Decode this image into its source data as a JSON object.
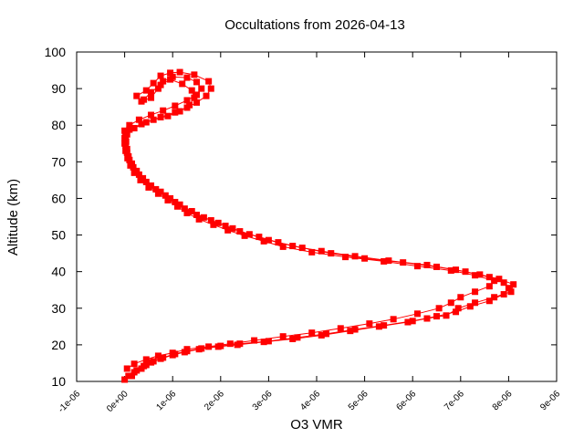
{
  "chart_data": {
    "type": "scatter",
    "title": "Occultations from 2026-04-13",
    "xlabel": "O3 VMR",
    "ylabel": "Altitude (km)",
    "xlim": [
      -1e-06,
      9e-06
    ],
    "ylim": [
      10,
      100
    ],
    "x_ticks": [
      "-1e-06",
      "0e+00",
      "1e-06",
      "2e-06",
      "3e-06",
      "4e-06",
      "5e-06",
      "6e-06",
      "7e-06",
      "8e-06",
      "9e-06"
    ],
    "x_tick_values": [
      -1e-06,
      0,
      1e-06,
      2e-06,
      3e-06,
      4e-06,
      5e-06,
      6e-06,
      7e-06,
      8e-06,
      9e-06
    ],
    "y_ticks": [
      "10",
      "20",
      "30",
      "40",
      "50",
      "60",
      "70",
      "80",
      "90",
      "100"
    ],
    "y_tick_values": [
      10,
      20,
      30,
      40,
      50,
      60,
      70,
      80,
      90,
      100
    ],
    "grid": false,
    "marker": "square",
    "color": "#ff0000",
    "series": [
      {
        "points": [
          [
            0.0,
            10.5
          ],
          [
            8e-08,
            11.5
          ],
          [
            2e-07,
            12.5
          ],
          [
            3.5e-07,
            13.5
          ],
          [
            4.5e-07,
            14.5
          ],
          [
            6e-07,
            15.5
          ],
          [
            8e-07,
            16.5
          ],
          [
            1.05e-06,
            17.5
          ],
          [
            1.3e-06,
            18.3
          ],
          [
            1.6e-06,
            19.0
          ],
          [
            2e-06,
            19.7
          ],
          [
            2.4e-06,
            20.3
          ],
          [
            3e-06,
            21.0
          ],
          [
            3.6e-06,
            22.0
          ],
          [
            4.2e-06,
            23.0
          ],
          [
            4.8e-06,
            24.2
          ],
          [
            5.4e-06,
            25.3
          ],
          [
            6e-06,
            26.5
          ],
          [
            6.5e-06,
            27.8
          ],
          [
            6.9e-06,
            29.0
          ],
          [
            7.2e-06,
            30.5
          ],
          [
            7.6e-06,
            32.0
          ],
          [
            7.9e-06,
            33.8
          ],
          [
            8e-06,
            35.5
          ],
          [
            7.9e-06,
            37.0
          ],
          [
            7.6e-06,
            38.5
          ],
          [
            7.1e-06,
            40.0
          ],
          [
            6.5e-06,
            41.3
          ],
          [
            5.8e-06,
            42.5
          ],
          [
            5e-06,
            43.6
          ],
          [
            4.3e-06,
            45.0
          ],
          [
            3.7e-06,
            46.5
          ],
          [
            3.2e-06,
            48.0
          ],
          [
            2.8e-06,
            49.5
          ],
          [
            2.4e-06,
            51.0
          ],
          [
            2.1e-06,
            52.5
          ],
          [
            1.8e-06,
            54.0
          ],
          [
            1.5e-06,
            55.5
          ],
          [
            1.25e-06,
            57.2
          ],
          [
            1.05e-06,
            59.0
          ],
          [
            8.5e-07,
            60.8
          ],
          [
            6.5e-07,
            62.5
          ],
          [
            4.5e-07,
            64.5
          ],
          [
            3e-07,
            66.5
          ],
          [
            1.8e-07,
            68.5
          ],
          [
            1e-07,
            70.5
          ],
          [
            5e-08,
            72.5
          ],
          [
            2e-08,
            74.5
          ],
          [
            0.0,
            76.5
          ],
          [
            0.0,
            78.5
          ],
          [
            1e-07,
            80.0
          ],
          [
            3e-07,
            81.5
          ],
          [
            5.5e-07,
            82.8
          ],
          [
            8e-07,
            84.0
          ],
          [
            1.05e-06,
            85.3
          ],
          [
            1.3e-06,
            86.8
          ],
          [
            1.5e-06,
            88.3
          ],
          [
            1.6e-06,
            90.0
          ],
          [
            1.5e-06,
            91.8
          ],
          [
            1.3e-06,
            93.0
          ],
          [
            1e-06,
            93.2
          ],
          [
            8e-07,
            92.0
          ],
          [
            7e-07,
            90.0
          ],
          [
            5.5e-07,
            87.5
          ],
          [
            3.5e-07,
            86.5
          ]
        ]
      },
      {
        "points": [
          [
            1.5e-07,
            11.5
          ],
          [
            2.5e-07,
            13.0
          ],
          [
            4e-07,
            14.2
          ],
          [
            5.5e-07,
            15.2
          ],
          [
            7.5e-07,
            16.2
          ],
          [
            1e-06,
            17.2
          ],
          [
            1.25e-06,
            18.0
          ],
          [
            1.55e-06,
            18.8
          ],
          [
            1.95e-06,
            19.5
          ],
          [
            2.35e-06,
            20.0
          ],
          [
            2.9e-06,
            20.8
          ],
          [
            3.5e-06,
            21.6
          ],
          [
            4.1e-06,
            22.6
          ],
          [
            4.7e-06,
            23.8
          ],
          [
            5.3e-06,
            25.0
          ],
          [
            5.9e-06,
            26.2
          ],
          [
            6.3e-06,
            27.2
          ],
          [
            6.7e-06,
            28.0
          ],
          [
            6.95e-06,
            30.0
          ],
          [
            7.3e-06,
            31.5
          ],
          [
            7.7e-06,
            33.0
          ],
          [
            8.05e-06,
            34.5
          ],
          [
            8.1e-06,
            36.5
          ],
          [
            7.8e-06,
            38.0
          ],
          [
            7.4e-06,
            39.2
          ],
          [
            6.9e-06,
            40.5
          ],
          [
            6.3e-06,
            41.8
          ],
          [
            5.5e-06,
            43.0
          ],
          [
            4.8e-06,
            44.2
          ],
          [
            4.1e-06,
            45.6
          ],
          [
            3.5e-06,
            47.0
          ],
          [
            3e-06,
            48.6
          ],
          [
            2.6e-06,
            50.2
          ],
          [
            2.25e-06,
            51.8
          ],
          [
            1.95e-06,
            53.3
          ],
          [
            1.65e-06,
            54.8
          ],
          [
            1.4e-06,
            56.5
          ],
          [
            1.15e-06,
            58.3
          ],
          [
            9.5e-07,
            60.0
          ],
          [
            7.5e-07,
            61.8
          ],
          [
            5.5e-07,
            63.5
          ],
          [
            3.8e-07,
            65.5
          ],
          [
            2.5e-07,
            67.5
          ],
          [
            1.5e-07,
            69.5
          ],
          [
            8e-08,
            71.5
          ],
          [
            5e-08,
            73.5
          ],
          [
            3e-08,
            75.5
          ],
          [
            5e-08,
            77.5
          ],
          [
            2e-07,
            79.2
          ],
          [
            4.5e-07,
            80.8
          ],
          [
            7.5e-07,
            82.2
          ],
          [
            1.05e-06,
            83.5
          ],
          [
            1.3e-06,
            84.8
          ],
          [
            1.5e-06,
            86.2
          ],
          [
            1.7e-06,
            88.0
          ],
          [
            1.8e-06,
            90.0
          ],
          [
            1.75e-06,
            92.0
          ],
          [
            1.45e-06,
            93.8
          ],
          [
            1.15e-06,
            94.5
          ],
          [
            9.5e-07,
            94.3
          ],
          [
            7.5e-07,
            93.5
          ],
          [
            6e-07,
            91.5
          ],
          [
            4.5e-07,
            89.5
          ],
          [
            2.5e-07,
            88.0
          ]
        ]
      },
      {
        "points": [
          [
            5e-08,
            13.5
          ],
          [
            2e-07,
            14.8
          ],
          [
            4.5e-07,
            16.0
          ],
          [
            7e-07,
            17.0
          ],
          [
            1e-06,
            17.8
          ],
          [
            1.3e-06,
            18.8
          ],
          [
            1.75e-06,
            19.5
          ],
          [
            2.2e-06,
            20.3
          ],
          [
            2.7e-06,
            21.2
          ],
          [
            3.3e-06,
            22.3
          ],
          [
            3.9e-06,
            23.3
          ],
          [
            4.5e-06,
            24.5
          ],
          [
            5.1e-06,
            25.8
          ],
          [
            5.6e-06,
            27.0
          ],
          [
            6.1e-06,
            28.5
          ],
          [
            6.55e-06,
            30.0
          ],
          [
            6.8e-06,
            31.5
          ],
          [
            7e-06,
            33.0
          ],
          [
            7.3e-06,
            34.5
          ],
          [
            7.6e-06,
            36.0
          ],
          [
            7.7e-06,
            37.5
          ],
          [
            7.3e-06,
            39.0
          ],
          [
            6.8e-06,
            40.3
          ],
          [
            6.1e-06,
            41.5
          ],
          [
            5.4e-06,
            42.8
          ],
          [
            4.6e-06,
            44.0
          ],
          [
            3.9e-06,
            45.3
          ],
          [
            3.3e-06,
            46.8
          ],
          [
            2.9e-06,
            48.3
          ],
          [
            2.5e-06,
            49.8
          ],
          [
            2.15e-06,
            51.3
          ],
          [
            1.85e-06,
            52.8
          ],
          [
            1.55e-06,
            54.3
          ],
          [
            1.3e-06,
            56.0
          ],
          [
            1.1e-06,
            57.8
          ],
          [
            9e-07,
            59.5
          ],
          [
            7e-07,
            61.3
          ],
          [
            5e-07,
            63.0
          ],
          [
            3.3e-07,
            65.0
          ],
          [
            2e-07,
            67.0
          ],
          [
            1.2e-07,
            69.0
          ],
          [
            6e-08,
            71.0
          ],
          [
            2e-08,
            73.0
          ],
          [
            0.0,
            75.0
          ],
          [
            2e-08,
            77.0
          ],
          [
            1e-07,
            78.8
          ],
          [
            3.5e-07,
            80.3
          ],
          [
            6e-07,
            81.5
          ],
          [
            9e-07,
            82.5
          ],
          [
            1.15e-06,
            83.8
          ],
          [
            1.35e-06,
            85.5
          ],
          [
            1.45e-06,
            87.5
          ],
          [
            1.4e-06,
            89.5
          ],
          [
            1.2e-06,
            91.3
          ],
          [
            9.5e-07,
            92.5
          ],
          [
            7.5e-07,
            91.0
          ],
          [
            5.5e-07,
            89.0
          ],
          [
            4e-07,
            87.0
          ]
        ]
      }
    ]
  }
}
